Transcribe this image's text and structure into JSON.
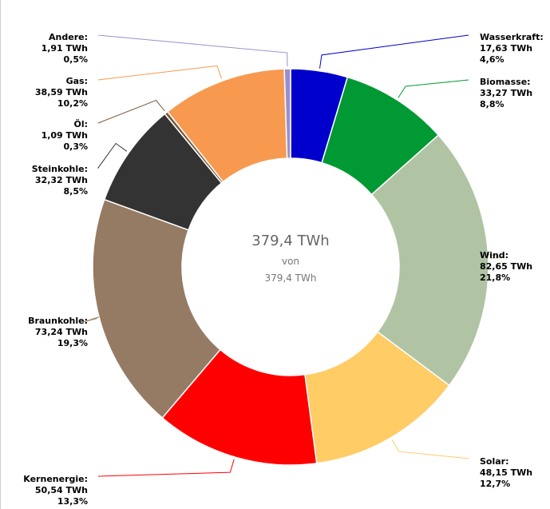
{
  "chart_data": {
    "type": "pie",
    "variant": "donut",
    "unit": "TWh",
    "center": {
      "value": "379,4 TWh",
      "sub1": "von",
      "sub2": "379,4 TWh"
    },
    "slices": [
      {
        "name": "Wasserkraft:",
        "value_text": "17,63 TWh",
        "percent_text": "4,6%",
        "value": 17.63,
        "percent": 4.6,
        "color": "#0000cc"
      },
      {
        "name": "Biomasse:",
        "value_text": "33,27 TWh",
        "percent_text": "8,8%",
        "value": 33.27,
        "percent": 8.8,
        "color": "#009933"
      },
      {
        "name": "Wind:",
        "value_text": "82,65 TWh",
        "percent_text": "21,8%",
        "value": 82.65,
        "percent": 21.8,
        "color": "#b0c4a4"
      },
      {
        "name": "Solar:",
        "value_text": "48,15 TWh",
        "percent_text": "12,7%",
        "value": 48.15,
        "percent": 12.7,
        "color": "#ffcc66"
      },
      {
        "name": "Kernenergie:",
        "value_text": "50,54 TWh",
        "percent_text": "13,3%",
        "value": 50.54,
        "percent": 13.3,
        "color": "#ff0000"
      },
      {
        "name": "Braunkohle:",
        "value_text": "73,24 TWh",
        "percent_text": "19,3%",
        "value": 73.24,
        "percent": 19.3,
        "color": "#957b63"
      },
      {
        "name": "Steinkohle:",
        "value_text": "32,32 TWh",
        "percent_text": "8,5%",
        "value": 32.32,
        "percent": 8.5,
        "color": "#333333"
      },
      {
        "name": "Öl:",
        "value_text": "1,09 TWh",
        "percent_text": "0,3%",
        "value": 1.09,
        "percent": 0.3,
        "color": "#7b5a3c"
      },
      {
        "name": "Gas:",
        "value_text": "38,59 TWh",
        "percent_text": "10,2%",
        "value": 38.59,
        "percent": 10.2,
        "color": "#f79a4f"
      },
      {
        "name": "Andere:",
        "value_text": "1,91 TWh",
        "percent_text": "0,5%",
        "value": 1.91,
        "percent": 0.5,
        "color": "#9c8ec9"
      }
    ]
  }
}
